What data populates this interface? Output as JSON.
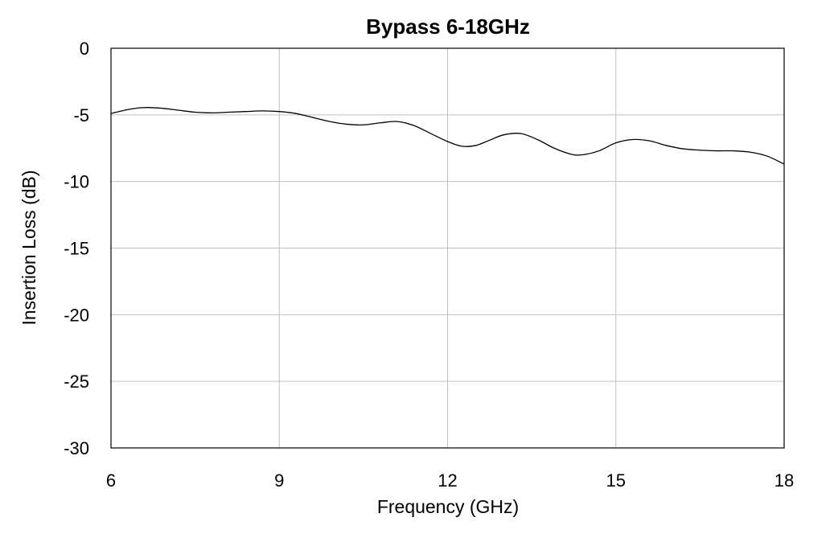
{
  "chart_data": {
    "type": "line",
    "title": "Bypass 6-18GHz",
    "xlabel": "Frequency (GHz)",
    "ylabel": "Insertion Loss (dB)",
    "xlim": [
      6,
      18
    ],
    "ylim": [
      -30,
      0
    ],
    "xticks": [
      6,
      9,
      12,
      15,
      18
    ],
    "yticks": [
      0,
      -5,
      -10,
      -15,
      -20,
      -25,
      -30
    ],
    "grid": true,
    "series": [
      {
        "x": [
          6.0,
          6.3,
          6.6,
          6.9,
          7.2,
          7.5,
          7.8,
          8.1,
          8.4,
          8.7,
          9.0,
          9.3,
          9.6,
          9.9,
          10.2,
          10.5,
          10.8,
          11.1,
          11.4,
          11.7,
          12.0,
          12.25,
          12.5,
          12.75,
          13.0,
          13.3,
          13.6,
          13.9,
          14.2,
          14.4,
          14.7,
          15.0,
          15.3,
          15.6,
          15.9,
          16.2,
          16.5,
          16.8,
          17.1,
          17.4,
          17.7,
          18.0
        ],
        "y": [
          -4.9,
          -4.6,
          -4.45,
          -4.5,
          -4.65,
          -4.8,
          -4.85,
          -4.8,
          -4.75,
          -4.7,
          -4.75,
          -4.9,
          -5.2,
          -5.5,
          -5.7,
          -5.75,
          -5.6,
          -5.5,
          -5.8,
          -6.4,
          -7.0,
          -7.35,
          -7.3,
          -6.9,
          -6.5,
          -6.4,
          -6.85,
          -7.5,
          -7.95,
          -8.0,
          -7.7,
          -7.1,
          -6.85,
          -6.95,
          -7.3,
          -7.55,
          -7.65,
          -7.7,
          -7.7,
          -7.8,
          -8.1,
          -8.7
        ]
      }
    ]
  }
}
